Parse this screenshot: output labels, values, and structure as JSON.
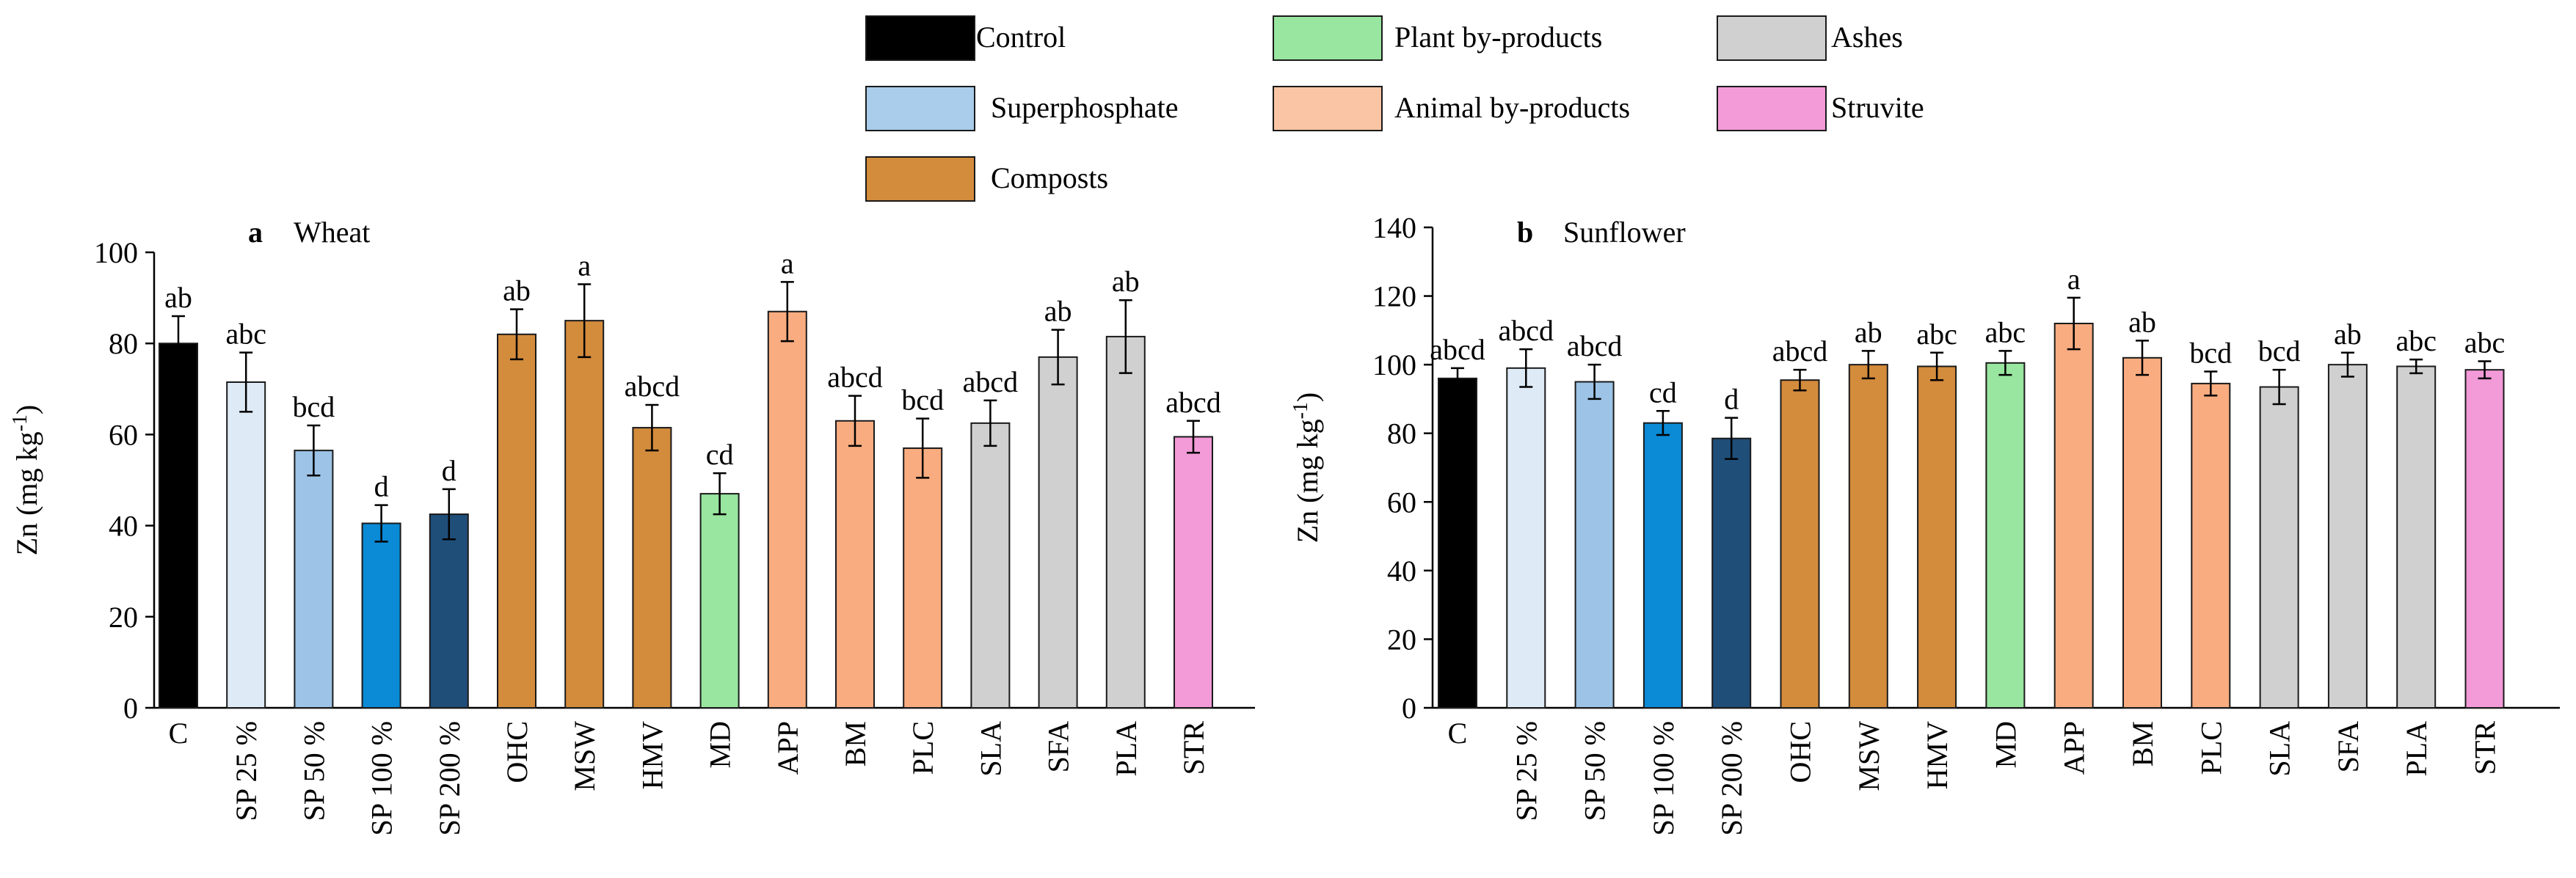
{
  "colors": {
    "control": "#000000",
    "sp25": "#deebf7",
    "sp50": "#9dc3e6",
    "sp100": "#0b8ad6",
    "sp200": "#1f4e79",
    "composts": "#d38b3c",
    "plant": "#99e6a0",
    "animal": "#f8ac80",
    "ashes": "#d0d0d0",
    "struvite": "#f39ad8",
    "legend_control": "#000000",
    "legend_superphosphate": "#a9cdea",
    "legend_composts": "#d38b3c",
    "legend_plant": "#99e6a0",
    "legend_animal": "#f9c5a4",
    "legend_ashes": "#d0d0d0",
    "legend_struvite": "#f39ad8"
  },
  "legend": [
    {
      "label": "Control",
      "color_key": "legend_control"
    },
    {
      "label": "Superphosphate",
      "color_key": "legend_superphosphate"
    },
    {
      "label": "Composts",
      "color_key": "legend_composts"
    },
    {
      "label": "Plant by-products",
      "color_key": "legend_plant"
    },
    {
      "label": "Animal by-products",
      "color_key": "legend_animal"
    },
    {
      "label": "Ashes",
      "color_key": "legend_ashes"
    },
    {
      "label": "Struvite",
      "color_key": "legend_struvite"
    }
  ],
  "chart_data": [
    {
      "type": "bar",
      "panel": "a",
      "title": "Wheat",
      "ylabel": "Zn (mg kg",
      "ylabel_sup": "-1",
      "ylabel_close": ")",
      "ylim": [
        0,
        100
      ],
      "yticks": [
        0,
        20,
        40,
        60,
        80,
        100
      ],
      "categories": [
        "C",
        "SP 25 %",
        "SP 50 %",
        "SP 100 %",
        "SP 200 %",
        "OHC",
        "MSW",
        "HMV",
        "MD",
        "APP",
        "BM",
        "PLC",
        "SLA",
        "SFA",
        "PLA",
        "STR"
      ],
      "values": [
        80,
        71.5,
        56.5,
        40.5,
        42.5,
        82,
        85,
        61.5,
        47,
        87,
        63,
        57,
        62.5,
        77,
        81.5,
        59.5
      ],
      "errors": [
        6,
        6.5,
        5.5,
        4,
        5.5,
        5.5,
        8,
        5,
        4.5,
        6.5,
        5.5,
        6.5,
        5,
        6,
        8,
        3.5
      ],
      "letters": [
        "ab",
        "abc",
        "bcd",
        "d",
        "d",
        "ab",
        "a",
        "abcd",
        "cd",
        "a",
        "abcd",
        "bcd",
        "abcd",
        "ab",
        "ab",
        "abcd"
      ],
      "color_keys": [
        "control",
        "sp25",
        "sp50",
        "sp100",
        "sp200",
        "composts",
        "composts",
        "composts",
        "plant",
        "animal",
        "animal",
        "animal",
        "ashes",
        "ashes",
        "ashes",
        "struvite"
      ]
    },
    {
      "type": "bar",
      "panel": "b",
      "title": "Sunflower",
      "ylabel": "Zn (mg kg",
      "ylabel_sup": "-1",
      "ylabel_close": ")",
      "ylim": [
        0,
        140
      ],
      "yticks": [
        0,
        20,
        40,
        60,
        80,
        100,
        120,
        140
      ],
      "categories": [
        "C",
        "SP 25 %",
        "SP 50 %",
        "SP 100 %",
        "SP 200 %",
        "OHC",
        "MSW",
        "HMV",
        "MD",
        "APP",
        "BM",
        "PLC",
        "SLA",
        "SFA",
        "PLA",
        "STR"
      ],
      "values": [
        96,
        99,
        95,
        83,
        78.5,
        95.5,
        100,
        99.5,
        100.5,
        112,
        102,
        94.5,
        93.5,
        100,
        99.5,
        98.5
      ],
      "errors": [
        3,
        5.5,
        5,
        3.5,
        6,
        3,
        4,
        4,
        3.5,
        7.5,
        5,
        3.5,
        5,
        3.5,
        2,
        2.5
      ],
      "letters": [
        "abcd",
        "abcd",
        "abcd",
        "cd",
        "d",
        "abcd",
        "ab",
        "abc",
        "abc",
        "a",
        "ab",
        "bcd",
        "bcd",
        "ab",
        "abc",
        "abc"
      ],
      "color_keys": [
        "control",
        "sp25",
        "sp50",
        "sp100",
        "sp200",
        "composts",
        "composts",
        "composts",
        "plant",
        "animal",
        "animal",
        "animal",
        "ashes",
        "ashes",
        "ashes",
        "struvite"
      ]
    }
  ]
}
